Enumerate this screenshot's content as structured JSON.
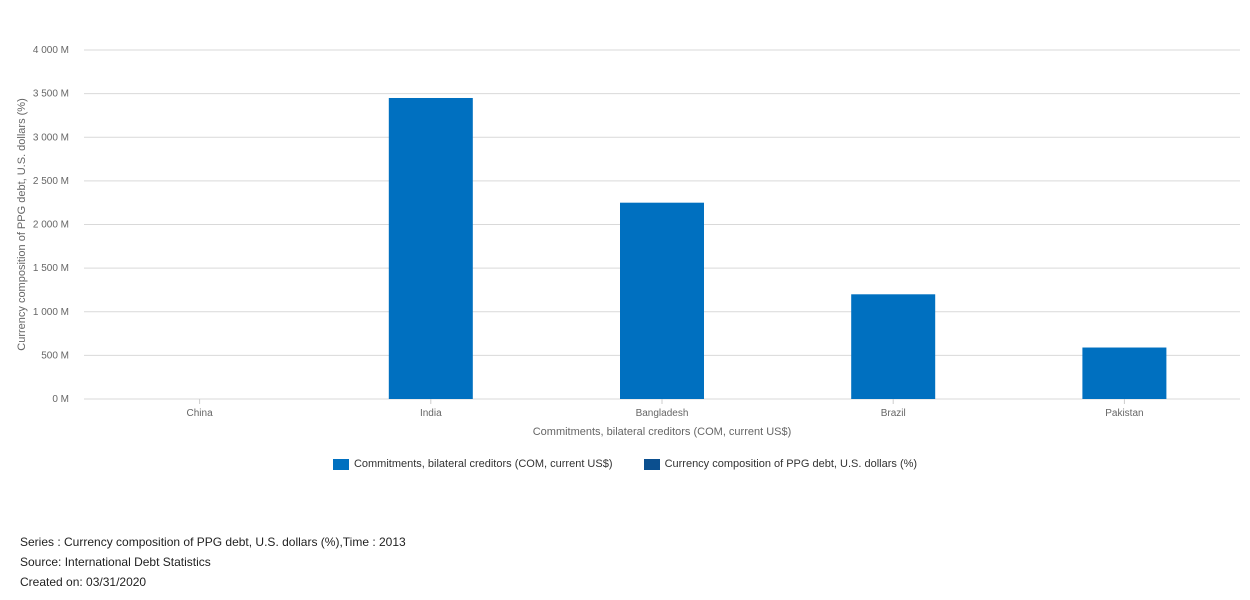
{
  "chart_data": {
    "type": "bar",
    "categories": [
      "China",
      "India",
      "Bangladesh",
      "Brazil",
      "Pakistan"
    ],
    "series": [
      {
        "name": "Commitments, bilateral creditors (COM, current US$)",
        "color": "#0070c0",
        "values": [
          0,
          3450,
          2250,
          1200,
          590
        ]
      },
      {
        "name": "Currency composition of PPG debt, U.S. dollars (%)",
        "color": "#0b4f8f",
        "values": [
          null,
          null,
          null,
          null,
          null
        ]
      }
    ],
    "xlabel": "Commitments, bilateral creditors (COM, current US$)",
    "ylabel": "Currency composition of PPG debt, U.S. dollars (%)",
    "ylim": [
      0,
      4000
    ],
    "yticks": [
      0,
      500,
      1000,
      1500,
      2000,
      2500,
      3000,
      3500,
      4000
    ],
    "ytick_labels": [
      "0 M",
      "500 M",
      "1 000 M",
      "1 500 M",
      "2 000 M",
      "2 500 M",
      "3 000 M",
      "3 500 M",
      "4 000 M"
    ],
    "grid": true,
    "legend_position": "bottom-center"
  },
  "footer": {
    "series_line": "Series : Currency composition of PPG debt, U.S. dollars (%),Time : 2013",
    "source_line": "Source: International Debt Statistics",
    "created_line": "Created on: 03/31/2020"
  }
}
